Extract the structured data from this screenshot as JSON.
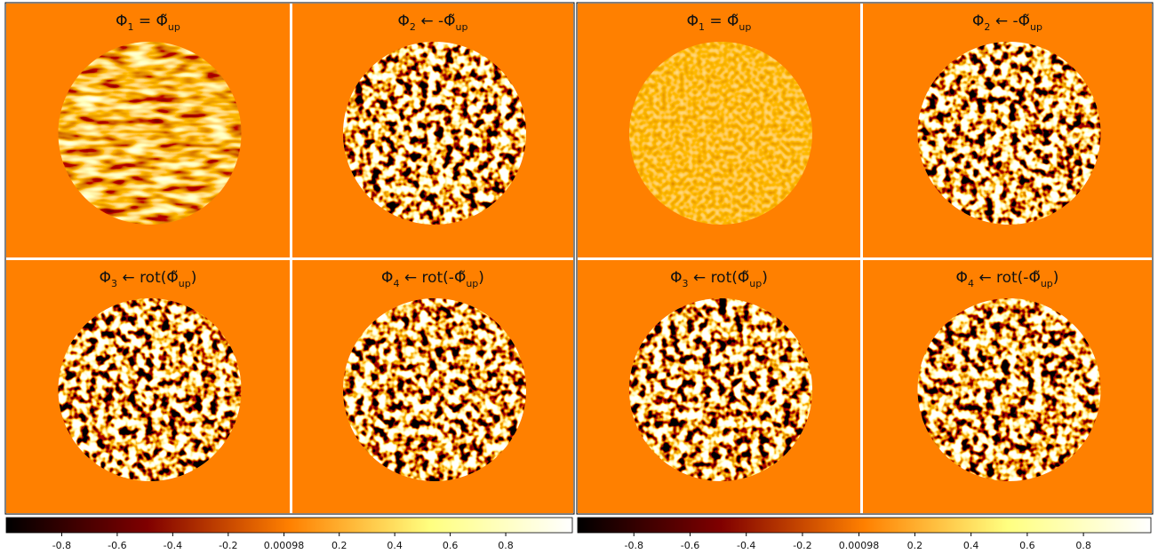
{
  "figures": [
    {
      "subplots": [
        {
          "title": [
            {
              "text": "Φ"
            },
            {
              "sub": "1"
            },
            {
              "text": " = Φ̃"
            },
            {
              "sub": "up"
            }
          ]
        },
        {
          "title": [
            {
              "text": "Φ"
            },
            {
              "sub": "2"
            },
            {
              "text": " ← -Φ̃"
            },
            {
              "sub": "up"
            }
          ]
        },
        {
          "title": [
            {
              "text": "Φ"
            },
            {
              "sub": "3"
            },
            {
              "text": " ← rot(Φ̃"
            },
            {
              "sub": "up"
            },
            {
              "text": ")"
            }
          ]
        },
        {
          "title": [
            {
              "text": "Φ"
            },
            {
              "sub": "4"
            },
            {
              "text": " ← rot(-Φ̃"
            },
            {
              "sub": "up"
            },
            {
              "text": ")"
            }
          ]
        }
      ],
      "colorbar": {
        "lim": [
          -1,
          1.04
        ],
        "ticks": [
          -0.8,
          -0.6,
          -0.4,
          -0.2,
          0.00098,
          0.2,
          0.4,
          0.6,
          0.8
        ]
      }
    },
    {
      "subplots": [
        {
          "title": [
            {
              "text": "Φ"
            },
            {
              "sub": "1"
            },
            {
              "text": " = Φ̃"
            },
            {
              "sub": "up"
            }
          ]
        },
        {
          "title": [
            {
              "text": "Φ"
            },
            {
              "sub": "2"
            },
            {
              "text": " ← -Φ̃"
            },
            {
              "sub": "up"
            }
          ]
        },
        {
          "title": [
            {
              "text": "Φ"
            },
            {
              "sub": "3"
            },
            {
              "text": " ← rot(Φ̃"
            },
            {
              "sub": "up"
            },
            {
              "text": ")"
            }
          ]
        },
        {
          "title": [
            {
              "text": "Φ"
            },
            {
              "sub": "4"
            },
            {
              "text": " ← rot(-Φ̃"
            },
            {
              "sub": "up"
            },
            {
              "text": ")"
            }
          ]
        }
      ],
      "colorbar": {
        "lim": [
          -1,
          1.04
        ],
        "ticks": [
          -0.8,
          -0.6,
          -0.4,
          -0.2,
          0.00098,
          0.2,
          0.4,
          0.6,
          0.8
        ]
      }
    }
  ]
}
